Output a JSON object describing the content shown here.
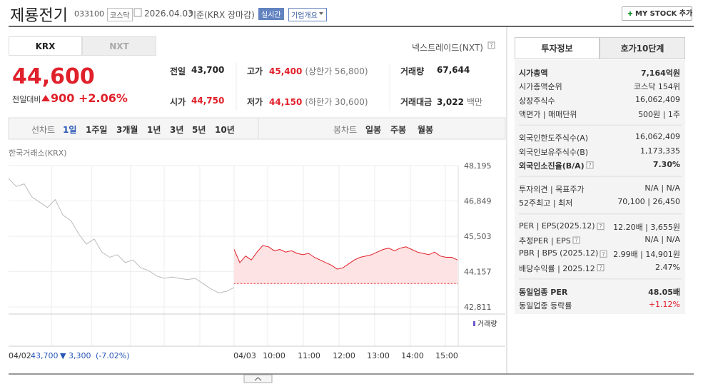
{
  "header": {
    "title": "제룡전기",
    "code": "033100",
    "market": "코스닥",
    "date": "2026.04.03",
    "basis": "기준(KRX 장마감)",
    "realtime": "실시간",
    "company_overview": "기업개요",
    "my_stock_button": "MY STOCK 추가"
  },
  "market_tabs": {
    "tabs": [
      "KRX",
      "NXT"
    ],
    "selected": 0,
    "nxt_label": "넥스트레이드(NXT)"
  },
  "quote": {
    "price": "44,600",
    "change_label": "전일대비",
    "change": "900",
    "change_rate": "+2.06%",
    "color": "#e0202a"
  },
  "stats": [
    [
      {
        "label": "전일",
        "value": "43,700"
      },
      {
        "label": "고가",
        "value": "45,400",
        "sub": "(상한가 56,800)",
        "color": "#e0202a"
      },
      {
        "label": "거래량",
        "value": "67,644"
      }
    ],
    [
      {
        "label": "시가",
        "value": "44,750",
        "color": "#e0202a"
      },
      {
        "label": "저가",
        "value": "44,150",
        "sub": "(하한가 30,600)",
        "color": "#e0202a"
      },
      {
        "label": "거래대금",
        "value": "3,022",
        "sub": "백만"
      }
    ]
  ],
  "chart_toolbar": {
    "line_label": "선차트",
    "line_periods": [
      "1일",
      "1주일",
      "3개월",
      "1년",
      "3년",
      "5년",
      "10년"
    ],
    "selected": 0,
    "candle_label": "봉차트",
    "candle_periods": [
      "일봉",
      "주봉",
      "월봉"
    ]
  },
  "price_chart": {
    "type": "line",
    "source": "한국거래소(KRX)",
    "ylim": [
      42811,
      48195
    ],
    "yticks": [
      {
        "value": 48195,
        "label": "48,195"
      },
      {
        "value": 46849,
        "label": "46,849"
      },
      {
        "value": 45503,
        "label": "45,503"
      },
      {
        "value": 44157,
        "label": "44,157"
      },
      {
        "value": 42811,
        "label": "42,811"
      }
    ],
    "baseline": 43700,
    "series": [
      {
        "color": "#bbbbbb",
        "values": [
          47700,
          47400,
          47500,
          47000,
          46800,
          46600,
          46900,
          46300,
          46100,
          45600,
          45200,
          45400,
          44900,
          44700,
          44800,
          44500,
          44600,
          44300,
          44200,
          44000,
          43900,
          43950,
          43900,
          43850,
          43900,
          43700,
          43500,
          43350,
          43400,
          43550
        ]
      },
      {
        "color": "#e0202a",
        "fill": "#fde3e3",
        "values": [
          45000,
          44500,
          44750,
          44600,
          44900,
          45150,
          45100,
          44950,
          45000,
          44900,
          44950,
          44850,
          44800,
          44850,
          44700,
          44600,
          44500,
          44400,
          44250,
          44300,
          44450,
          44600,
          44700,
          44750,
          44800,
          44900,
          45000,
          45050,
          44950,
          45050,
          45100,
          45000,
          44900,
          44850,
          44800,
          44900,
          44750,
          44700,
          44700,
          44600
        ]
      }
    ],
    "volume_label": "거래량",
    "x_labels": [
      "04/03",
      "10:00",
      "11:00",
      "12:00",
      "13:00",
      "14:00",
      "15:00"
    ],
    "prev_summary": {
      "date": "04/02",
      "close": "43,700",
      "change": "▼ 3,300",
      "change_rate": "(-7.02%)"
    }
  },
  "invest_info": {
    "tabs": [
      "투자정보",
      "호가10단계"
    ],
    "selected": 0,
    "sections": [
      [
        {
          "label": "시가총액",
          "value": "7,164억원",
          "emphasis": true
        },
        {
          "label": "시가총액순위",
          "value": "코스닥 154위"
        },
        {
          "label": "상장주식수",
          "value": "16,062,409"
        },
        {
          "label": "액면가 | 매매단위",
          "value": "500원 | 1주"
        }
      ],
      [
        {
          "label": "외국인한도주식수(A)",
          "value": "16,062,409"
        },
        {
          "label": "외국인보유주식수(B)",
          "value": "1,173,335"
        },
        {
          "label": "외국인소진율(B/A)",
          "value": "7.30%",
          "emphasis": true,
          "help": true
        }
      ],
      [
        {
          "label": "투자의견 | 목표주가",
          "value": "N/A | N/A"
        },
        {
          "label": "52주최고 | 최저",
          "value": "70,100 | 26,450"
        }
      ],
      [
        {
          "label": "PER | EPS(2025.12)",
          "value": "12.20배 | 3,655원",
          "help": true
        },
        {
          "label": "추정PER | EPS",
          "value": "N/A | N/A",
          "help": true
        },
        {
          "label": "PBR | BPS (2025.12)",
          "value": "2.99배 | 14,901원",
          "help": true
        },
        {
          "label": "배당수익률 | 2025.12",
          "value": "2.47%",
          "help": true
        }
      ],
      [
        {
          "label": "동일업종 PER",
          "value": "48.05배",
          "emphasis": true
        },
        {
          "label": "동일업종 등락률",
          "value": "+1.12%",
          "color": "#e0202a"
        }
      ]
    ]
  }
}
